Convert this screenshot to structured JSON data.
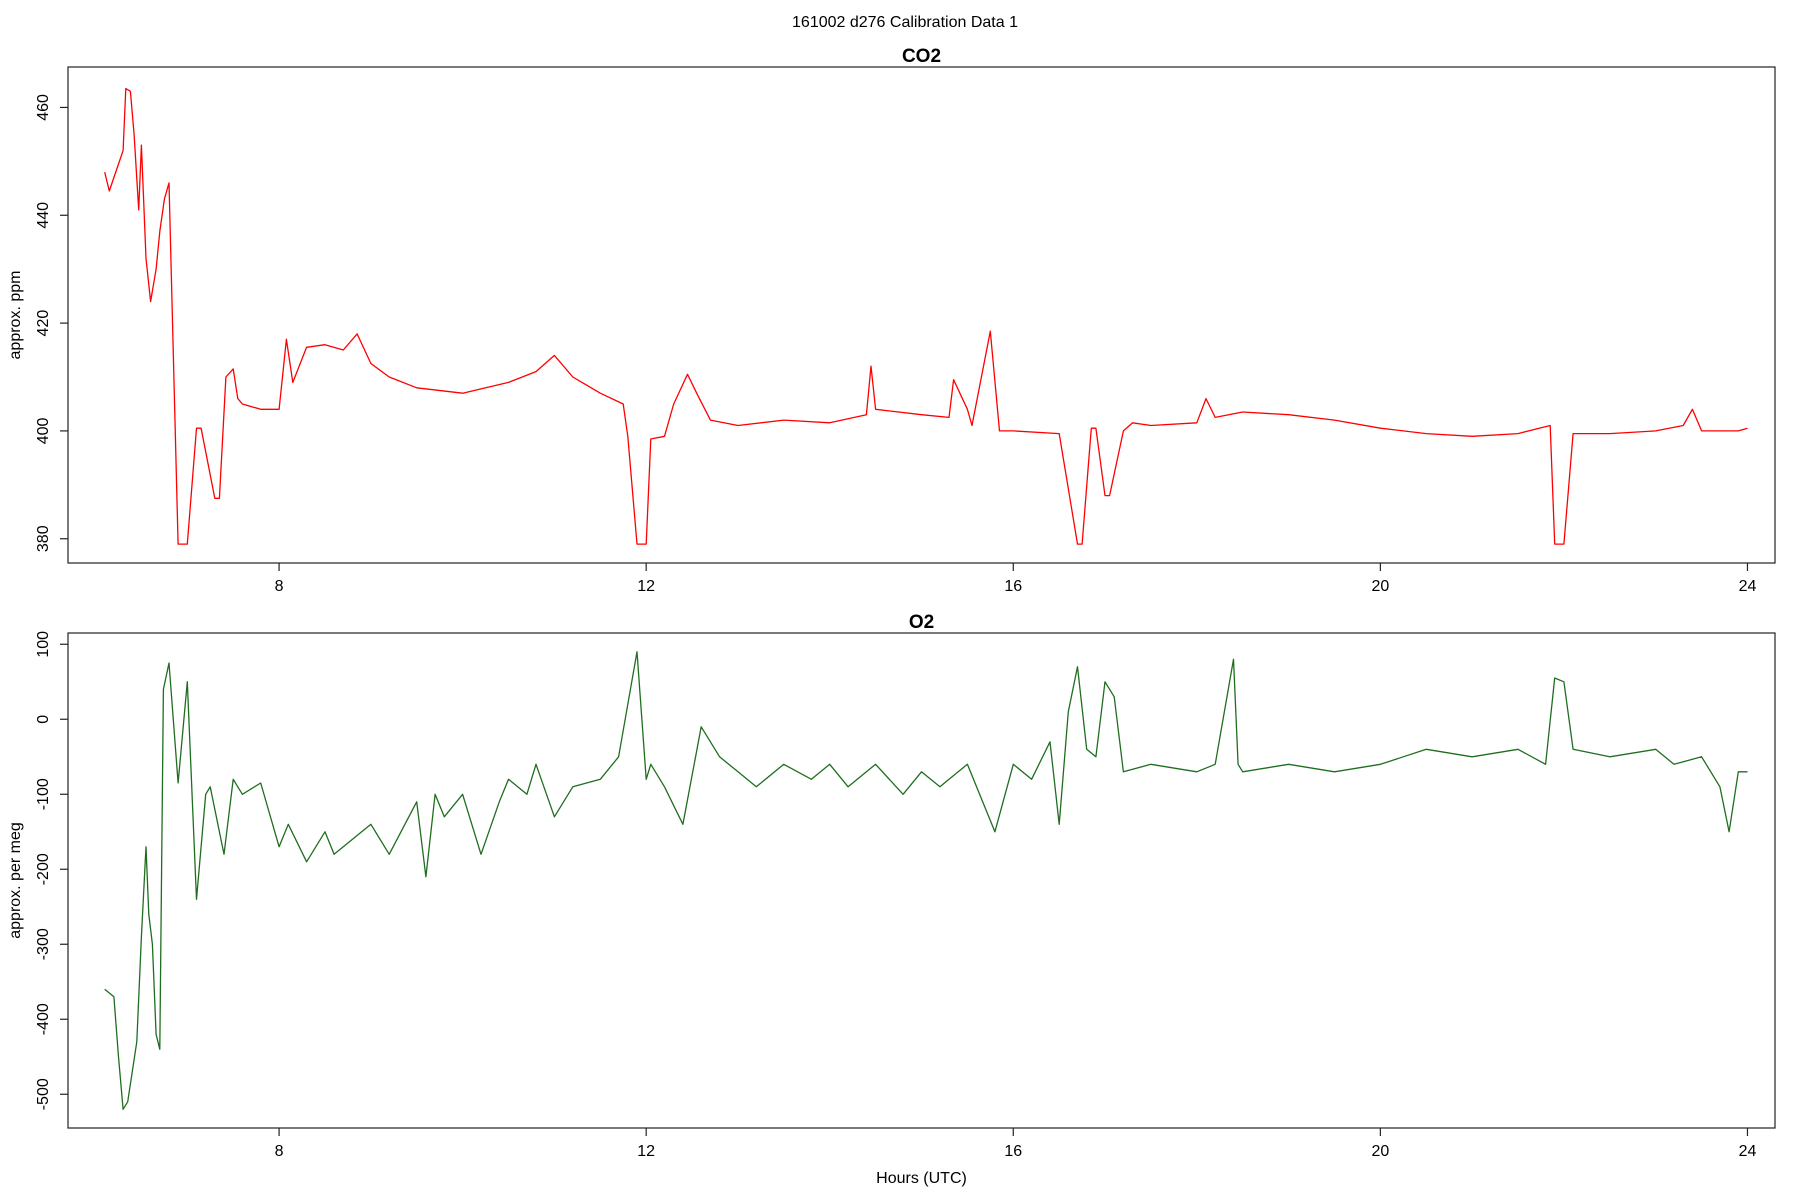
{
  "figure": {
    "title": "161002   d276   Calibration Data 1"
  },
  "chart_data": [
    {
      "type": "line",
      "title": "CO2",
      "xlabel": "",
      "ylabel": "approx. ppm",
      "xlim": [
        5.7,
        24.3
      ],
      "ylim": [
        375.5,
        467.5
      ],
      "xticks": [
        8,
        12,
        16,
        20,
        24
      ],
      "yticks": [
        380,
        400,
        420,
        440,
        460
      ],
      "color": "#ff0000",
      "x": [
        6.1,
        6.15,
        6.2,
        6.3,
        6.33,
        6.38,
        6.42,
        6.47,
        6.5,
        6.55,
        6.6,
        6.66,
        6.7,
        6.75,
        6.8,
        6.9,
        7.0,
        7.1,
        7.15,
        7.3,
        7.35,
        7.42,
        7.5,
        7.55,
        7.6,
        7.8,
        8.0,
        8.08,
        8.15,
        8.3,
        8.5,
        8.7,
        8.85,
        9.0,
        9.2,
        9.5,
        10.0,
        10.5,
        10.8,
        11.0,
        11.2,
        11.5,
        11.75,
        11.8,
        11.9,
        12.0,
        12.05,
        12.2,
        12.3,
        12.45,
        12.55,
        12.7,
        13.0,
        13.5,
        14.0,
        14.4,
        14.45,
        14.5,
        15.0,
        15.3,
        15.35,
        15.5,
        15.55,
        15.75,
        15.85,
        16.0,
        16.5,
        16.7,
        16.75,
        16.85,
        16.9,
        17.0,
        17.05,
        17.2,
        17.3,
        17.5,
        18.0,
        18.1,
        18.2,
        18.5,
        19.0,
        19.5,
        20.0,
        20.5,
        21.0,
        21.5,
        21.85,
        21.9,
        22.0,
        22.1,
        22.5,
        23.0,
        23.3,
        23.4,
        23.5,
        23.9,
        24.0
      ],
      "values": [
        448,
        444.5,
        447,
        452,
        463.5,
        463,
        455,
        441,
        453,
        432,
        424,
        430,
        437,
        443,
        446,
        379,
        379,
        400.5,
        400.5,
        387.5,
        387.5,
        410,
        411.5,
        406,
        405,
        404,
        404,
        417,
        409,
        415.5,
        416,
        415,
        418,
        412.5,
        410,
        408,
        407,
        409,
        411,
        414,
        410,
        407,
        405,
        399,
        379,
        379,
        398.5,
        399,
        405,
        410.5,
        407,
        402,
        401,
        402,
        401.5,
        403,
        412,
        404,
        403,
        402.5,
        409.5,
        404,
        401,
        418.5,
        400,
        400,
        399.5,
        379,
        379,
        400.5,
        400.5,
        388,
        388,
        400,
        401.5,
        401,
        401.5,
        406,
        402.5,
        403.5,
        403,
        402,
        400.5,
        399.5,
        399,
        399.5,
        401,
        379,
        379,
        399.5,
        399.5,
        400,
        401,
        404,
        400,
        400,
        400.5
      ]
    },
    {
      "type": "line",
      "title": "O2",
      "xlabel": "Hours (UTC)",
      "ylabel": "approx. per meg",
      "xlim": [
        5.7,
        24.3
      ],
      "ylim": [
        -545,
        115
      ],
      "xticks": [
        8,
        12,
        16,
        20,
        24
      ],
      "yticks": [
        -500,
        -400,
        -300,
        -200,
        -100,
        0,
        100
      ],
      "color": "#1f6e1f",
      "x": [
        6.1,
        6.2,
        6.25,
        6.3,
        6.35,
        6.45,
        6.5,
        6.55,
        6.58,
        6.62,
        6.66,
        6.7,
        6.74,
        6.8,
        6.9,
        7.0,
        7.1,
        7.2,
        7.25,
        7.4,
        7.5,
        7.6,
        7.8,
        8.0,
        8.1,
        8.3,
        8.5,
        8.6,
        8.8,
        9.0,
        9.2,
        9.5,
        9.6,
        9.7,
        9.8,
        10.0,
        10.2,
        10.4,
        10.5,
        10.7,
        10.8,
        11.0,
        11.2,
        11.5,
        11.7,
        11.8,
        11.9,
        12.0,
        12.05,
        12.2,
        12.4,
        12.6,
        12.8,
        13.0,
        13.2,
        13.5,
        13.8,
        14.0,
        14.2,
        14.5,
        14.8,
        15.0,
        15.2,
        15.5,
        15.8,
        16.0,
        16.2,
        16.4,
        16.5,
        16.6,
        16.7,
        16.8,
        16.9,
        17.0,
        17.1,
        17.2,
        17.5,
        18.0,
        18.2,
        18.4,
        18.45,
        18.5,
        19.0,
        19.5,
        20.0,
        20.5,
        21.0,
        21.5,
        21.8,
        21.9,
        22.0,
        22.1,
        22.5,
        23.0,
        23.2,
        23.5,
        23.7,
        23.8,
        23.9,
        24.0
      ],
      "values": [
        -360,
        -370,
        -450,
        -520,
        -510,
        -430,
        -290,
        -170,
        -260,
        -300,
        -420,
        -440,
        40,
        75,
        -85,
        50,
        -240,
        -100,
        -90,
        -180,
        -80,
        -100,
        -85,
        -170,
        -140,
        -190,
        -150,
        -180,
        -160,
        -140,
        -180,
        -110,
        -210,
        -100,
        -130,
        -100,
        -180,
        -110,
        -80,
        -100,
        -60,
        -130,
        -90,
        -80,
        -50,
        20,
        90,
        -80,
        -60,
        -90,
        -140,
        -10,
        -50,
        -70,
        -90,
        -60,
        -80,
        -60,
        -90,
        -60,
        -100,
        -70,
        -90,
        -60,
        -150,
        -60,
        -80,
        -30,
        -140,
        10,
        70,
        -40,
        -50,
        50,
        30,
        -70,
        -60,
        -70,
        -60,
        80,
        -60,
        -70,
        -60,
        -70,
        -60,
        -40,
        -50,
        -40,
        -60,
        55,
        50,
        -40,
        -50,
        -40,
        -60,
        -50,
        -90,
        -150,
        -70,
        -70
      ]
    }
  ]
}
